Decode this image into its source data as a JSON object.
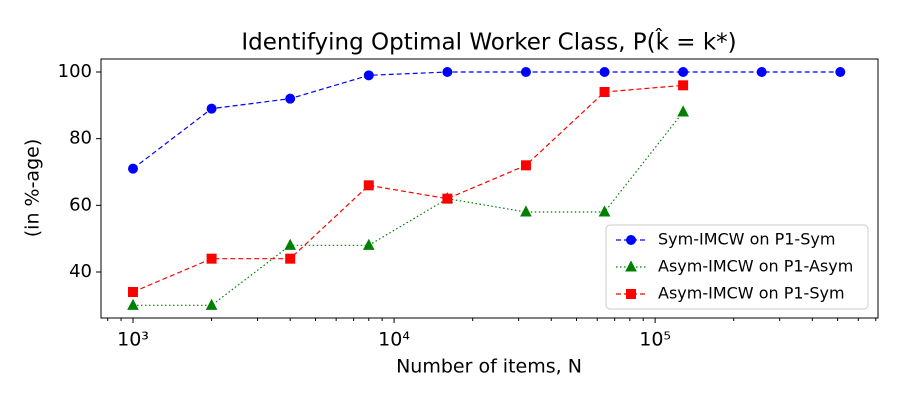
{
  "chart_data": {
    "type": "line",
    "title": "Identifying Optimal Worker Class, P(k̂ = k*)",
    "x_label": "Number of items, N",
    "y_label": "(in %-age)",
    "x": [
      1000,
      2000,
      4000,
      8000,
      16000,
      32000,
      64000,
      128000,
      256000,
      512000
    ],
    "series": [
      {
        "name": "Sym-IMCW on P1-Sym",
        "color": "#0000ff",
        "linestyle": "dashed",
        "marker": "circle",
        "values": [
          71,
          89,
          92,
          99,
          100,
          100,
          100,
          100,
          100,
          100
        ]
      },
      {
        "name": "Asym-IMCW on P1-Asym",
        "color": "#008000",
        "linestyle": "dotted",
        "marker": "triangle",
        "values": [
          30,
          30,
          48,
          48,
          62,
          58,
          58,
          88,
          null,
          null
        ]
      },
      {
        "name": "Asym-IMCW on P1-Sym",
        "color": "#ff0000",
        "linestyle": "dashed",
        "marker": "square",
        "values": [
          34,
          44,
          44,
          66,
          62,
          72,
          94,
          96,
          null,
          null
        ]
      }
    ],
    "x_scale": "log",
    "xlim": [
      754,
      714000
    ],
    "xticks": [
      {
        "value": 1000,
        "label": "10³"
      },
      {
        "value": 10000,
        "label": "10⁴"
      },
      {
        "value": 100000,
        "label": "10⁵"
      }
    ],
    "xminorticks": [
      800,
      900,
      2000,
      3000,
      4000,
      5000,
      6000,
      7000,
      8000,
      9000,
      20000,
      30000,
      40000,
      50000,
      60000,
      70000,
      80000,
      90000,
      200000,
      300000,
      400000,
      500000,
      600000,
      700000
    ],
    "ylim": [
      26.2,
      103.9
    ],
    "yticks": [
      40,
      60,
      80,
      100
    ],
    "legend": "lower right",
    "grid": false
  }
}
